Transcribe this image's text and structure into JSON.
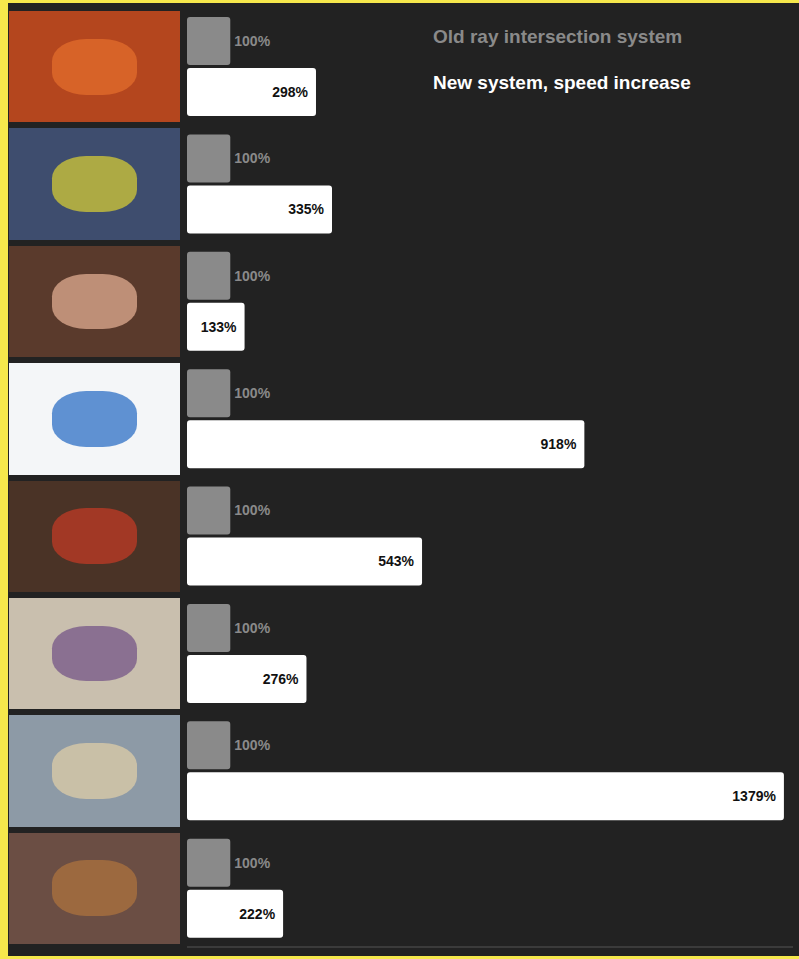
{
  "chart_data": {
    "type": "bar",
    "orientation": "horizontal",
    "categories": [
      null,
      null,
      null,
      null,
      null,
      null,
      null,
      null
    ],
    "series": [
      {
        "name": "Old ray intersection system",
        "color": "#8a8a8a",
        "values": [
          100,
          100,
          100,
          100,
          100,
          100,
          100,
          100
        ],
        "value_labels": [
          "100%",
          "100%",
          "100%",
          "100%",
          "100%",
          "100%",
          "100%",
          "100%"
        ]
      },
      {
        "name": "New system, speed increase",
        "color": "#ffffff",
        "values": [
          298,
          335,
          133,
          918,
          543,
          276,
          1379,
          222
        ],
        "value_labels": [
          "298%",
          "335%",
          "133%",
          "918%",
          "543%",
          "276%",
          "1379%",
          "222%"
        ]
      }
    ],
    "xlim": [
      0,
      1400
    ],
    "grid": false,
    "data_labels": true,
    "tick_labels": false,
    "legend": "top-right"
  }
}
